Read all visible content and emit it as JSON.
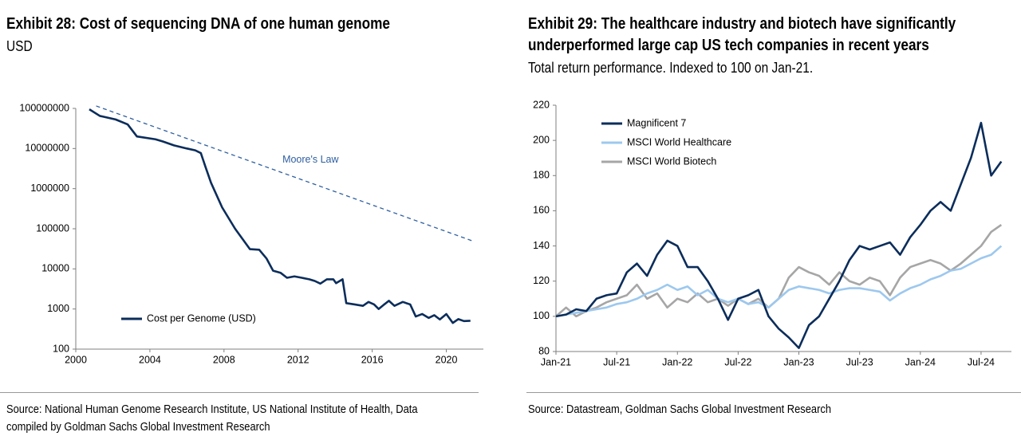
{
  "chart_data": [
    {
      "type": "line",
      "title": "Exhibit 28: Cost of sequencing DNA of one human genome",
      "subtitle": "USD",
      "source": "Source: National Human Genome Research Institute, US National Institute of Health, Data compiled by Goldman Sachs Global Investment Research",
      "log_scale": true,
      "xlim": [
        2000,
        2022
      ],
      "xticks": [
        2000,
        2004,
        2008,
        2012,
        2016,
        2020
      ],
      "ylim": [
        100,
        100000000
      ],
      "yticks": [
        100,
        1000,
        10000,
        100000,
        1000000,
        10000000,
        100000000
      ],
      "grid": false,
      "legend": "lower left",
      "series": [
        {
          "name": "Cost per Genome (USD)",
          "color": "#0b2d5b",
          "dash": false,
          "x": [
            2000.73,
            2001.3,
            2002.15,
            2002.8,
            2003.3,
            2004.3,
            2004.7,
            2005.3,
            2006,
            2006.45,
            2006.75,
            2007,
            2007.3,
            2007.9,
            2008.6,
            2009.4,
            2009.9,
            2010.3,
            2010.65,
            2011.05,
            2011.4,
            2011.8,
            2012.2,
            2012.6,
            2012.9,
            2013.2,
            2013.55,
            2013.9,
            2014.05,
            2014.4,
            2014.6,
            2015.05,
            2015.5,
            2015.8,
            2016.1,
            2016.35,
            2016.65,
            2016.9,
            2017.2,
            2017.65,
            2018.05,
            2018.35,
            2018.7,
            2019.05,
            2019.35,
            2019.65,
            2020,
            2020.35,
            2020.65,
            2020.95,
            2021.3
          ],
          "values": [
            95000000,
            65000000,
            53000000,
            40000000,
            20000000,
            17000000,
            15000000,
            12000000,
            10000000,
            9000000,
            7700000,
            3500000,
            1400000,
            340000,
            100000,
            31000,
            30000,
            18000,
            9000,
            8000,
            6000,
            6500,
            6000,
            5500,
            5000,
            4300,
            5500,
            5500,
            4400,
            5500,
            1400,
            1300,
            1200,
            1500,
            1300,
            1000,
            1300,
            1600,
            1200,
            1500,
            1300,
            650,
            750,
            600,
            700,
            550,
            750,
            450,
            560,
            500,
            510
          ]
        },
        {
          "name": "Moore's Law",
          "color": "#2e5fa0",
          "dash": true,
          "x": [
            2001.1,
            2021.4
          ],
          "values": [
            115000000,
            50000
          ]
        }
      ]
    },
    {
      "type": "line",
      "title": "Exhibit 29: The healthcare industry and biotech have significantly underperformed large cap US tech companies in recent years",
      "subtitle": "Total return performance. Indexed to 100 on Jan-21.",
      "source": "Source: Datastream, Goldman Sachs Global Investment Research",
      "log_scale": false,
      "xlim": [
        0,
        45
      ],
      "xticks": [
        {
          "value": 0,
          "label": "Jan-21"
        },
        {
          "value": 6,
          "label": "Jul-21"
        },
        {
          "value": 12,
          "label": "Jan-22"
        },
        {
          "value": 18,
          "label": "Jul-22"
        },
        {
          "value": 24,
          "label": "Jan-23"
        },
        {
          "value": 30,
          "label": "Jul-23"
        },
        {
          "value": 36,
          "label": "Jan-24"
        },
        {
          "value": 42,
          "label": "Jul-24"
        }
      ],
      "ylim": [
        80,
        220
      ],
      "yticks": [
        80,
        100,
        120,
        140,
        160,
        180,
        200,
        220
      ],
      "grid": false,
      "legend": "upper left",
      "x": [
        0,
        1,
        2,
        3,
        4,
        5,
        6,
        7,
        8,
        9,
        10,
        11,
        12,
        13,
        14,
        15,
        16,
        17,
        18,
        19,
        20,
        21,
        22,
        23,
        24,
        25,
        26,
        27,
        28,
        29,
        30,
        31,
        32,
        33,
        34,
        35,
        36,
        37,
        38,
        39,
        40,
        41,
        42,
        43,
        44
      ],
      "series": [
        {
          "name": "Magnificent 7",
          "color": "#0b2d5b",
          "dash": false,
          "values": [
            100,
            101,
            104,
            103,
            110,
            112,
            113,
            125,
            130,
            123,
            135,
            143,
            140,
            128,
            128,
            120,
            110,
            98,
            110,
            112,
            115,
            100,
            93,
            88,
            82,
            95,
            100,
            110,
            120,
            132,
            140,
            138,
            140,
            142,
            135,
            145,
            152,
            160,
            165,
            160,
            175,
            190,
            210,
            180,
            188
          ]
        },
        {
          "name": "MSCI World Healthcare",
          "color": "#9dc8ee",
          "dash": false,
          "values": [
            100,
            101,
            102,
            103,
            104,
            105,
            107,
            108,
            110,
            113,
            115,
            118,
            115,
            117,
            112,
            115,
            110,
            108,
            110,
            107,
            108,
            105,
            110,
            115,
            117,
            116,
            115,
            113,
            115,
            116,
            116,
            115,
            114,
            109,
            113,
            116,
            118,
            121,
            123,
            126,
            127,
            130,
            133,
            135,
            140
          ]
        },
        {
          "name": "MSCI World Biotech",
          "color": "#a6a6a6",
          "dash": false,
          "values": [
            100,
            105,
            100,
            103,
            105,
            108,
            110,
            112,
            118,
            110,
            113,
            105,
            110,
            108,
            113,
            108,
            110,
            106,
            110,
            107,
            110,
            105,
            110,
            122,
            128,
            125,
            123,
            118,
            125,
            120,
            118,
            122,
            120,
            112,
            122,
            128,
            130,
            132,
            130,
            126,
            130,
            135,
            140,
            148,
            152
          ]
        }
      ]
    }
  ]
}
